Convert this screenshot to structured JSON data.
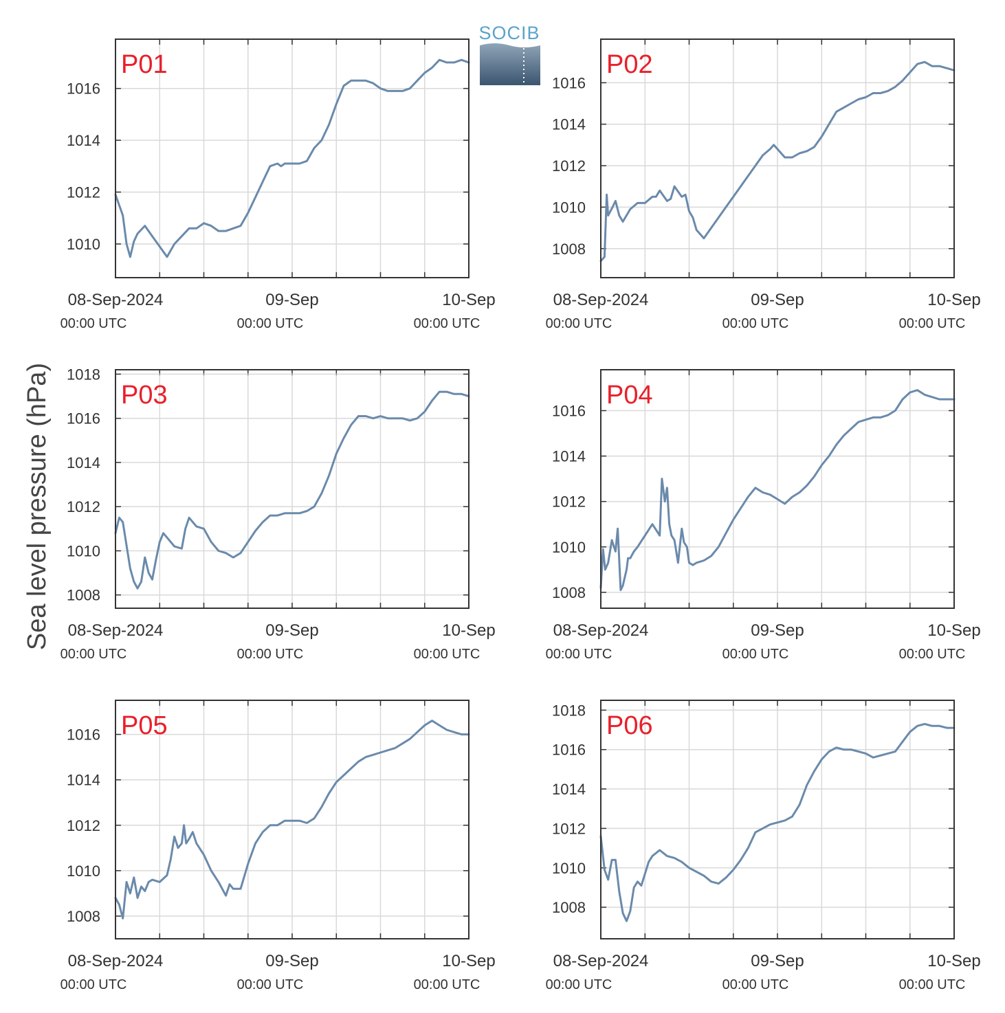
{
  "ylabel": "Sea level pressure (hPa)",
  "logo": {
    "text": "SOCIB",
    "icon": "socib-logo",
    "colors": {
      "text": "#5aa3cc",
      "top": "#8fa5b8",
      "bottom": "#3c5570"
    }
  },
  "colors": {
    "line": "#6a8aab",
    "label": "#e8202a",
    "grid": "#d9d9d9",
    "axis": "#333333"
  },
  "x_axis": {
    "tick_labels": [
      {
        "date": "08-Sep-2024",
        "time": "00:00 UTC",
        "hour": 0
      },
      {
        "date": "09-Sep",
        "time": "00:00 UTC",
        "hour": 24
      },
      {
        "date": "10-Sep",
        "time": "00:00 UTC",
        "hour": 48
      }
    ],
    "range_hours": [
      0,
      48
    ],
    "gridline_every_hours": 6
  },
  "chart_data": [
    {
      "type": "line",
      "label": "P01",
      "ylim": [
        1008.7,
        1017.9
      ],
      "yticks": [
        1010,
        1012,
        1014,
        1016
      ],
      "x": [
        0,
        1,
        1.5,
        2,
        2.5,
        3,
        4,
        5,
        5.5,
        6,
        7,
        8,
        9,
        10,
        11,
        12,
        13,
        14,
        15,
        16,
        17,
        18,
        19,
        20,
        21,
        22,
        22.5,
        23,
        24,
        25,
        26,
        27,
        28,
        29,
        30,
        31,
        32,
        33,
        34,
        35,
        36,
        37,
        38,
        39,
        40,
        41,
        42,
        43,
        44,
        45,
        46,
        47,
        48
      ],
      "y": [
        1011.9,
        1011.1,
        1010.0,
        1009.5,
        1010.1,
        1010.4,
        1010.7,
        1010.3,
        1010.1,
        1009.9,
        1009.5,
        1010.0,
        1010.3,
        1010.6,
        1010.6,
        1010.8,
        1010.7,
        1010.5,
        1010.5,
        1010.6,
        1010.7,
        1011.2,
        1011.8,
        1012.4,
        1013.0,
        1013.1,
        1013.0,
        1013.1,
        1013.1,
        1013.1,
        1013.2,
        1013.7,
        1014.0,
        1014.6,
        1015.4,
        1016.1,
        1016.3,
        1016.3,
        1016.3,
        1016.2,
        1016.0,
        1015.9,
        1015.9,
        1015.9,
        1016.0,
        1016.3,
        1016.6,
        1016.8,
        1017.1,
        1017.0,
        1017.0,
        1017.1,
        1017.0
      ]
    },
    {
      "type": "line",
      "label": "P02",
      "ylim": [
        1006.6,
        1018.1
      ],
      "yticks": [
        1008,
        1010,
        1012,
        1014,
        1016
      ],
      "x": [
        0,
        0.5,
        0.8,
        1,
        1.3,
        1.6,
        2,
        2.5,
        3,
        4,
        5,
        6,
        7,
        7.5,
        8,
        9,
        9.5,
        10,
        11,
        11.5,
        12,
        12.5,
        13,
        14,
        15,
        16,
        17,
        18,
        19,
        20,
        21,
        22,
        23,
        23.5,
        24,
        25,
        26,
        27,
        28,
        29,
        30,
        31,
        32,
        33,
        34,
        35,
        36,
        37,
        38,
        39,
        40,
        41,
        42,
        43,
        44,
        45,
        46,
        47,
        48
      ],
      "y": [
        1007.4,
        1007.6,
        1010.6,
        1009.6,
        1009.8,
        1010.0,
        1010.3,
        1009.6,
        1009.3,
        1009.9,
        1010.2,
        1010.2,
        1010.5,
        1010.5,
        1010.8,
        1010.3,
        1010.4,
        1011.0,
        1010.5,
        1010.6,
        1009.8,
        1009.5,
        1008.9,
        1008.5,
        1009.0,
        1009.5,
        1010.0,
        1010.5,
        1011.0,
        1011.5,
        1012.0,
        1012.5,
        1012.8,
        1013.0,
        1012.8,
        1012.4,
        1012.4,
        1012.6,
        1012.7,
        1012.9,
        1013.4,
        1014.0,
        1014.6,
        1014.8,
        1015.0,
        1015.2,
        1015.3,
        1015.5,
        1015.5,
        1015.6,
        1015.8,
        1016.1,
        1016.5,
        1016.9,
        1017.0,
        1016.8,
        1016.8,
        1016.7,
        1016.6
      ]
    },
    {
      "type": "line",
      "label": "P03",
      "ylim": [
        1007.4,
        1018.2
      ],
      "yticks": [
        1008,
        1010,
        1012,
        1014,
        1016,
        1018
      ],
      "x": [
        0,
        0.5,
        1,
        2,
        2.5,
        3,
        3.5,
        4,
        4.5,
        5,
        5.5,
        6,
        6.5,
        7,
        8,
        9,
        9.5,
        10,
        11,
        12,
        13,
        14,
        15,
        16,
        17,
        18,
        19,
        20,
        21,
        22,
        23,
        24,
        25,
        26,
        27,
        28,
        29,
        30,
        31,
        32,
        33,
        34,
        35,
        36,
        37,
        38,
        39,
        40,
        41,
        42,
        43,
        44,
        45,
        46,
        47,
        48
      ],
      "y": [
        1010.8,
        1011.5,
        1011.3,
        1009.2,
        1008.6,
        1008.3,
        1008.6,
        1009.7,
        1009.0,
        1008.7,
        1009.6,
        1010.4,
        1010.8,
        1010.6,
        1010.2,
        1010.1,
        1011.0,
        1011.5,
        1011.1,
        1011.0,
        1010.4,
        1010.0,
        1009.9,
        1009.7,
        1009.9,
        1010.4,
        1010.9,
        1011.3,
        1011.6,
        1011.6,
        1011.7,
        1011.7,
        1011.7,
        1011.8,
        1012.0,
        1012.6,
        1013.4,
        1014.4,
        1015.1,
        1015.7,
        1016.1,
        1016.1,
        1016.0,
        1016.1,
        1016.0,
        1016.0,
        1016.0,
        1015.9,
        1016.0,
        1016.3,
        1016.8,
        1017.2,
        1017.2,
        1017.1,
        1017.1,
        1017.0
      ]
    },
    {
      "type": "line",
      "label": "P04",
      "ylim": [
        1007.3,
        1017.8
      ],
      "yticks": [
        1008,
        1010,
        1012,
        1014,
        1016
      ],
      "x": [
        0,
        0.3,
        0.6,
        1,
        1.5,
        2,
        2.3,
        2.7,
        3,
        3.5,
        3.7,
        4,
        4.5,
        5,
        6,
        7,
        8,
        8.3,
        8.7,
        9,
        9.3,
        9.6,
        10,
        10.5,
        11,
        11.3,
        11.7,
        12,
        12.5,
        13,
        14,
        15,
        16,
        17,
        18,
        19,
        20,
        21,
        22,
        23,
        24,
        25,
        26,
        27,
        28,
        29,
        30,
        31,
        32,
        33,
        34,
        35,
        36,
        37,
        38,
        39,
        40,
        41,
        42,
        43,
        44,
        45,
        46,
        47,
        48
      ],
      "y": [
        1008.2,
        1009.9,
        1009.0,
        1009.3,
        1010.3,
        1009.8,
        1010.8,
        1008.1,
        1008.3,
        1009.0,
        1009.5,
        1009.5,
        1009.8,
        1010.0,
        1010.5,
        1011.0,
        1010.5,
        1013.0,
        1012.0,
        1012.6,
        1011.0,
        1010.5,
        1010.3,
        1009.3,
        1010.8,
        1010.2,
        1010.0,
        1009.3,
        1009.2,
        1009.3,
        1009.4,
        1009.6,
        1010.0,
        1010.6,
        1011.2,
        1011.7,
        1012.2,
        1012.6,
        1012.4,
        1012.3,
        1012.1,
        1011.9,
        1012.2,
        1012.4,
        1012.7,
        1013.1,
        1013.6,
        1014.0,
        1014.5,
        1014.9,
        1015.2,
        1015.5,
        1015.6,
        1015.7,
        1015.7,
        1015.8,
        1016.0,
        1016.5,
        1016.8,
        1016.9,
        1016.7,
        1016.6,
        1016.5,
        1016.5,
        1016.5
      ]
    },
    {
      "type": "line",
      "label": "P05",
      "ylim": [
        1007.0,
        1017.5
      ],
      "yticks": [
        1008,
        1010,
        1012,
        1014,
        1016
      ],
      "x": [
        0,
        0.5,
        1,
        1.5,
        2,
        2.5,
        3,
        3.5,
        4,
        4.5,
        5,
        6,
        7,
        7.5,
        8,
        8.5,
        9,
        9.3,
        9.6,
        10,
        10.5,
        11,
        12,
        13,
        14,
        15,
        15.5,
        16,
        17,
        18,
        19,
        20,
        21,
        22,
        23,
        24,
        25,
        26,
        27,
        28,
        29,
        30,
        31,
        32,
        33,
        34,
        35,
        36,
        37,
        38,
        39,
        40,
        41,
        42,
        43,
        44,
        45,
        46,
        47,
        48
      ],
      "y": [
        1008.8,
        1008.5,
        1007.9,
        1009.5,
        1009.0,
        1009.7,
        1008.8,
        1009.3,
        1009.1,
        1009.5,
        1009.6,
        1009.5,
        1009.8,
        1010.5,
        1011.5,
        1011.0,
        1011.2,
        1012.0,
        1011.2,
        1011.4,
        1011.7,
        1011.2,
        1010.7,
        1010.0,
        1009.5,
        1008.9,
        1009.4,
        1009.2,
        1009.2,
        1010.3,
        1011.2,
        1011.7,
        1012.0,
        1012.0,
        1012.2,
        1012.2,
        1012.2,
        1012.1,
        1012.3,
        1012.8,
        1013.4,
        1013.9,
        1014.2,
        1014.5,
        1014.8,
        1015.0,
        1015.1,
        1015.2,
        1015.3,
        1015.4,
        1015.6,
        1015.8,
        1016.1,
        1016.4,
        1016.6,
        1016.4,
        1016.2,
        1016.1,
        1016.0,
        1016.0
      ]
    },
    {
      "type": "line",
      "label": "P06",
      "ylim": [
        1006.4,
        1018.5
      ],
      "yticks": [
        1008,
        1010,
        1012,
        1014,
        1016,
        1018
      ],
      "x": [
        0,
        0.5,
        1,
        1.5,
        2,
        2.5,
        3,
        3.5,
        4,
        4.5,
        5,
        5.5,
        6,
        6.5,
        7,
        8,
        9,
        10,
        11,
        12,
        13,
        14,
        15,
        16,
        17,
        18,
        19,
        20,
        21,
        22,
        23,
        24,
        25,
        26,
        27,
        28,
        29,
        30,
        31,
        32,
        33,
        34,
        35,
        36,
        37,
        38,
        39,
        40,
        41,
        42,
        43,
        44,
        45,
        46,
        47,
        48
      ],
      "y": [
        1011.6,
        1009.9,
        1009.4,
        1010.4,
        1010.4,
        1008.8,
        1007.7,
        1007.3,
        1007.8,
        1009.0,
        1009.3,
        1009.1,
        1009.7,
        1010.3,
        1010.6,
        1010.9,
        1010.6,
        1010.5,
        1010.3,
        1010.0,
        1009.8,
        1009.6,
        1009.3,
        1009.2,
        1009.5,
        1009.9,
        1010.4,
        1011.0,
        1011.8,
        1012.0,
        1012.2,
        1012.3,
        1012.4,
        1012.6,
        1013.2,
        1014.2,
        1014.9,
        1015.5,
        1015.9,
        1016.1,
        1016.0,
        1016.0,
        1015.9,
        1015.8,
        1015.6,
        1015.7,
        1015.8,
        1015.9,
        1016.4,
        1016.9,
        1017.2,
        1017.3,
        1017.2,
        1017.2,
        1017.1,
        1017.1
      ]
    }
  ]
}
